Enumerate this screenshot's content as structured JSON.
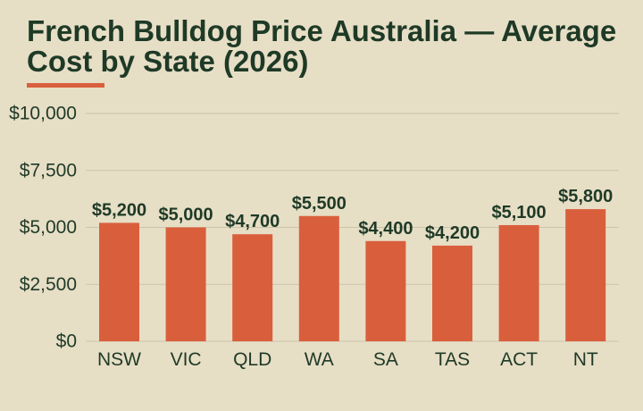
{
  "colors": {
    "background": "#e7dec6",
    "title": "#1e3a26",
    "accent": "#d95f3c",
    "bar": "#d95f3c",
    "grid": "#cdc3ab",
    "text": "#1e3a26"
  },
  "chart_data": {
    "type": "bar",
    "title": "French Bulldog Price Australia — Average Cost by State (2026)",
    "categories": [
      "NSW",
      "VIC",
      "QLD",
      "WA",
      "SA",
      "TAS",
      "ACT",
      "NT"
    ],
    "values": [
      5200,
      5000,
      4700,
      5500,
      4400,
      4200,
      5100,
      5800
    ],
    "value_labels": [
      "$5,200",
      "$5,000",
      "$4,700",
      "$5,500",
      "$4,400",
      "$4,200",
      "$5,100",
      "$5,800"
    ],
    "y_ticks": [
      0,
      2500,
      5000,
      7500,
      10000
    ],
    "y_tick_labels": [
      "$0",
      "$2,500",
      "$5,000",
      "$7,500",
      "$10,000"
    ],
    "ylim": [
      0,
      10000
    ],
    "xlabel": "",
    "ylabel": "",
    "grid": true,
    "legend": "none"
  }
}
